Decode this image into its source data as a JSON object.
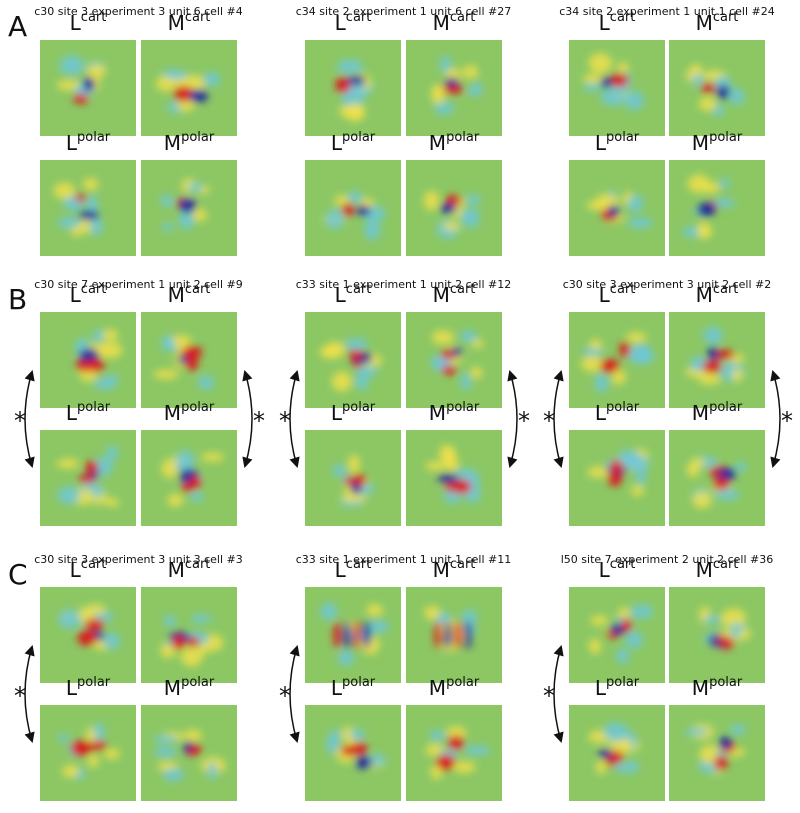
{
  "asterisk": "*",
  "rows": [
    {
      "letter": "A",
      "panels": [
        {
          "title": "c30 site 3 experiment 3 unit 6 cell #4",
          "labels": [
            {
              "base": "L",
              "sup": "cart"
            },
            {
              "base": "M",
              "sup": "cart"
            },
            {
              "base": "L",
              "sup": "polar"
            },
            {
              "base": "M",
              "sup": "polar"
            }
          ]
        },
        {
          "title": "c34 site 2 experiment 1 unit 6 cell #27",
          "labels": [
            {
              "base": "L",
              "sup": "cart"
            },
            {
              "base": "M",
              "sup": "cart"
            },
            {
              "base": "L",
              "sup": "polar"
            },
            {
              "base": "M",
              "sup": "polar"
            }
          ]
        },
        {
          "title": "c34 site 2 experiment 1 unit 1 cell #24",
          "labels": [
            {
              "base": "L",
              "sup": "cart"
            },
            {
              "base": "M",
              "sup": "cart"
            },
            {
              "base": "L",
              "sup": "polar"
            },
            {
              "base": "M",
              "sup": "polar"
            }
          ]
        }
      ]
    },
    {
      "letter": "B",
      "panels": [
        {
          "title": "c30 site 7 experiment 1 unit 2 cell #9",
          "labels": [
            {
              "base": "L",
              "sup": "cart"
            },
            {
              "base": "M",
              "sup": "cart"
            },
            {
              "base": "L",
              "sup": "polar"
            },
            {
              "base": "M",
              "sup": "polar"
            }
          ]
        },
        {
          "title": "c33 site 1 experiment 1 unit 2 cell #12",
          "labels": [
            {
              "base": "L",
              "sup": "cart"
            },
            {
              "base": "M",
              "sup": "cart"
            },
            {
              "base": "L",
              "sup": "polar"
            },
            {
              "base": "M",
              "sup": "polar"
            }
          ]
        },
        {
          "title": "c30 site 3 experiment 3 unit 2 cell #2",
          "labels": [
            {
              "base": "L",
              "sup": "cart"
            },
            {
              "base": "M",
              "sup": "cart"
            },
            {
              "base": "L",
              "sup": "polar"
            },
            {
              "base": "M",
              "sup": "polar"
            }
          ]
        }
      ]
    },
    {
      "letter": "C",
      "panels": [
        {
          "title": "c30 site 3 experiment 3 unit 3 cell #3",
          "labels": [
            {
              "base": "L",
              "sup": "cart"
            },
            {
              "base": "M",
              "sup": "cart"
            },
            {
              "base": "L",
              "sup": "polar"
            },
            {
              "base": "M",
              "sup": "polar"
            }
          ]
        },
        {
          "title": "c33 site 1 experiment 1 unit 1 cell #11",
          "labels": [
            {
              "base": "L",
              "sup": "cart"
            },
            {
              "base": "M",
              "sup": "cart"
            },
            {
              "base": "L",
              "sup": "polar"
            },
            {
              "base": "M",
              "sup": "polar"
            }
          ]
        },
        {
          "title": "l50 site 7 experiment 2 unit 2 cell #36",
          "labels": [
            {
              "base": "L",
              "sup": "cart"
            },
            {
              "base": "M",
              "sup": "cart"
            },
            {
              "base": "L",
              "sup": "polar"
            },
            {
              "base": "M",
              "sup": "polar"
            }
          ]
        }
      ]
    }
  ]
}
